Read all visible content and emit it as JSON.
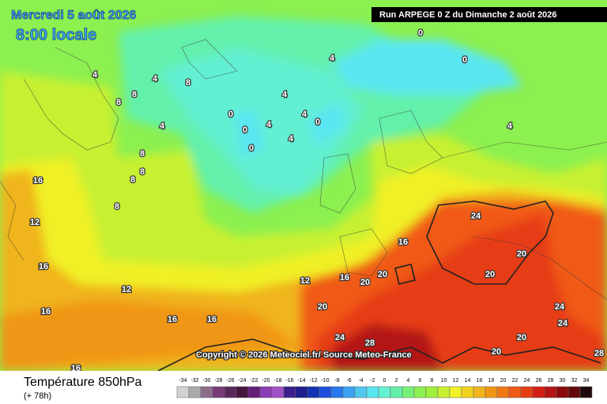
{
  "header": {
    "date": "Mercredi 5 août 2026",
    "time": "8:00 locale",
    "run": "Run ARPEGE 0 Z du Dimanche 2 août 2026"
  },
  "copyright": "Copyright © 2026 Meteociel.fr/ Source Meteo-France",
  "footer": {
    "title": "Température 850hPa",
    "lead": "(+ 78h)"
  },
  "legend": {
    "values": [
      -34,
      -32,
      -30,
      -28,
      -26,
      -24,
      -22,
      -20,
      -18,
      -16,
      -14,
      -12,
      -10,
      -8,
      -6,
      -4,
      -2,
      0,
      2,
      4,
      6,
      8,
      10,
      12,
      14,
      16,
      18,
      20,
      22,
      24,
      26,
      28,
      30,
      32,
      34
    ],
    "colors": [
      "#d2d2d2",
      "#aaaaaa",
      "#8c6e8c",
      "#783c78",
      "#5a285a",
      "#46143c",
      "#641e78",
      "#8c3cb4",
      "#a050c8",
      "#3c1e8c",
      "#1e1e8c",
      "#1432b4",
      "#1e50dc",
      "#2878f0",
      "#3ca0f0",
      "#50c8f0",
      "#5ae6f0",
      "#64f0d2",
      "#64f0aa",
      "#78f078",
      "#8cf050",
      "#a0f03c",
      "#c8f032",
      "#f0f028",
      "#f0d21e",
      "#f0b41e",
      "#f09614",
      "#f07814",
      "#f05a14",
      "#e63c14",
      "#d21e14",
      "#b41414",
      "#8c0a0a",
      "#640a0a",
      "#1e0a0a"
    ]
  },
  "contour_labels": [
    0,
    0,
    0,
    0,
    0,
    0,
    4,
    4,
    4,
    4,
    4,
    4,
    4,
    4,
    4,
    8,
    8,
    8,
    8,
    8,
    8,
    8,
    12,
    12,
    12,
    16,
    16,
    16,
    16,
    16,
    16,
    16,
    16,
    20,
    20,
    20,
    20,
    20,
    20,
    20,
    24,
    24,
    24,
    24,
    28,
    28
  ]
}
